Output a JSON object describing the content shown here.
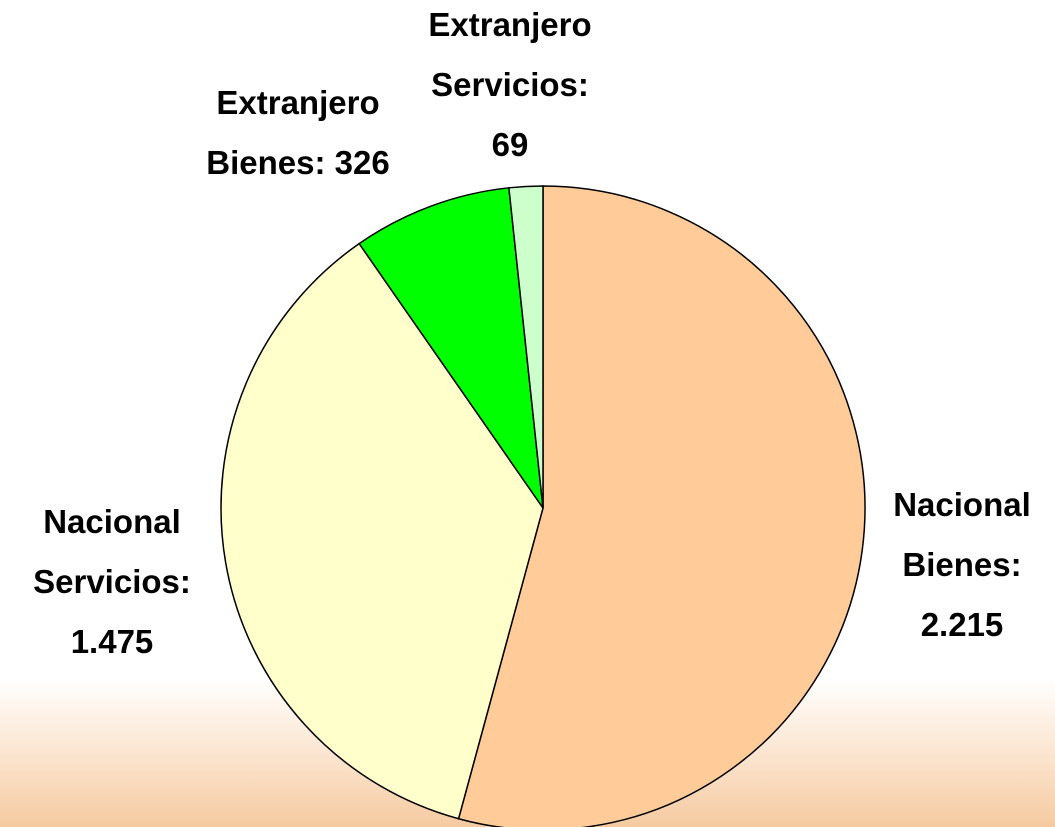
{
  "chart_data": {
    "type": "pie",
    "categories": [
      "Nacional Bienes:",
      "Nacional Servicios:",
      "Extranjero Bienes:",
      "Extranjero Servicios:"
    ],
    "values": [
      2215,
      1475,
      326,
      69
    ],
    "value_labels": [
      "2.215",
      "1.475",
      "326",
      "69"
    ],
    "colors": [
      "#FFCC99",
      "#FFFFCC",
      "#00FF00",
      "#CCFFCC"
    ]
  }
}
